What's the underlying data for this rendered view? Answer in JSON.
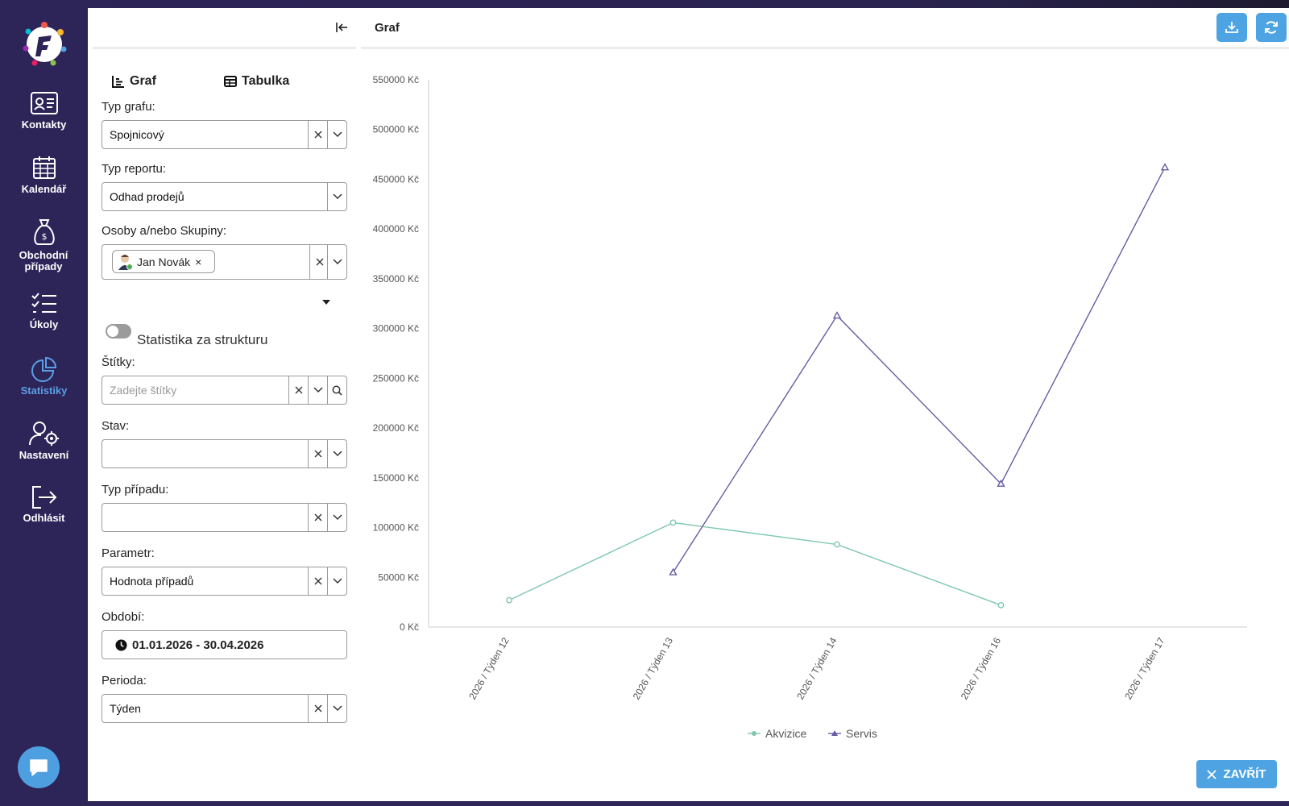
{
  "nav": {
    "items": [
      {
        "label": "Kontakty",
        "icon": "contact-card-icon"
      },
      {
        "label": "Kalendář",
        "icon": "calendar-icon"
      },
      {
        "label": "Obchodní případy",
        "icon": "money-bag-icon"
      },
      {
        "label": "Úkoly",
        "icon": "checklist-icon"
      },
      {
        "label": "Statistiky",
        "icon": "pie-chart-icon",
        "active": true
      },
      {
        "label": "Nastavení",
        "icon": "user-gear-icon"
      },
      {
        "label": "Odhlásit",
        "icon": "logout-icon"
      }
    ]
  },
  "sidebar": {
    "tabs": {
      "graph": "Graf",
      "table": "Tabulka"
    },
    "chart_type": {
      "label": "Typ grafu:",
      "value": "Spojnicový"
    },
    "report_type": {
      "label": "Typ reportu:",
      "value": "Odhad prodejů"
    },
    "people": {
      "label": "Osoby a/nebo Skupiny:",
      "chip": "Jan Novák",
      "chip_remove": "×"
    },
    "structure_toggle": {
      "label": "Statistika za strukturu",
      "on": false
    },
    "tags": {
      "label": "Štítky:",
      "placeholder": "Zadejte štítky"
    },
    "state": {
      "label": "Stav:",
      "value": ""
    },
    "case_type": {
      "label": "Typ případu:",
      "value": ""
    },
    "parameter": {
      "label": "Parametr:",
      "value": "Hodnota případů"
    },
    "period_range": {
      "label": "Období:",
      "value": "01.01.2026 - 30.04.2026"
    },
    "period": {
      "label": "Perioda:",
      "value": "Týden"
    }
  },
  "chart_panel": {
    "title": "Graf",
    "close_label": "ZAVŘÍT"
  },
  "colors": {
    "accent": "#4ea3e3",
    "nav_bg": "#2d2458",
    "akvizice": "#7fc8ad",
    "servis": "#6a5aa3"
  },
  "chart_data": {
    "type": "line",
    "categories": [
      "2026 / Týden 12",
      "2026 / Týden 13",
      "2026 / Týden 14",
      "2026 / Týden 16",
      "2026 / Týden 17"
    ],
    "series": [
      {
        "name": "Akvizice",
        "values": [
          27000,
          105000,
          83000,
          22000,
          null
        ],
        "marker": "circle"
      },
      {
        "name": "Servis",
        "values": [
          null,
          55000,
          313000,
          144000,
          462000
        ],
        "marker": "triangle"
      }
    ],
    "yticks": [
      "0 Kč",
      "50000 Kč",
      "100000 Kč",
      "150000 Kč",
      "200000 Kč",
      "250000 Kč",
      "300000 Kč",
      "350000 Kč",
      "400000 Kč",
      "450000 Kč",
      "500000 Kč",
      "550000 Kč"
    ],
    "ylim": [
      0,
      550000
    ],
    "legend_position": "bottom"
  }
}
